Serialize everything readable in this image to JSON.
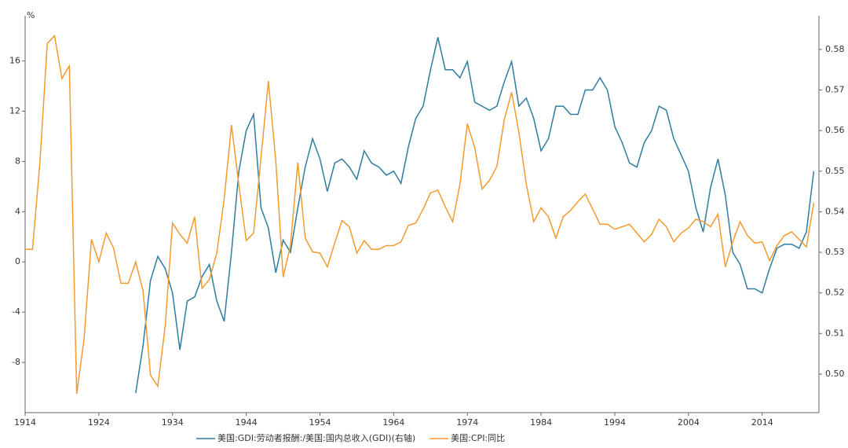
{
  "chart_data": {
    "type": "line",
    "y_unit": "%",
    "x": [
      1914,
      1915,
      1916,
      1917,
      1918,
      1919,
      1920,
      1921,
      1922,
      1923,
      1924,
      1925,
      1926,
      1927,
      1928,
      1929,
      1930,
      1931,
      1932,
      1933,
      1934,
      1935,
      1936,
      1937,
      1938,
      1939,
      1940,
      1941,
      1942,
      1943,
      1944,
      1945,
      1946,
      1947,
      1948,
      1949,
      1950,
      1951,
      1952,
      1953,
      1954,
      1955,
      1956,
      1957,
      1958,
      1959,
      1960,
      1961,
      1962,
      1963,
      1964,
      1965,
      1966,
      1967,
      1968,
      1969,
      1970,
      1971,
      1972,
      1973,
      1974,
      1975,
      1976,
      1977,
      1978,
      1979,
      1980,
      1981,
      1982,
      1983,
      1984,
      1985,
      1986,
      1987,
      1988,
      1989,
      1990,
      1991,
      1992,
      1993,
      1994,
      1995,
      1996,
      1997,
      1998,
      1999,
      2000,
      2001,
      2002,
      2003,
      2004,
      2005,
      2006,
      2007,
      2008,
      2009,
      2010,
      2011,
      2012,
      2013,
      2014,
      2015,
      2016,
      2017,
      2018,
      2019,
      2020,
      2021
    ],
    "xlim": [
      1914,
      2021.7
    ],
    "xticks": [
      1914,
      1924,
      1934,
      1944,
      1954,
      1964,
      1974,
      1984,
      1994,
      2004,
      2014
    ],
    "ylim": [
      -12,
      19.6
    ],
    "yticks": [
      -8,
      -4,
      0,
      4,
      8,
      12,
      16
    ],
    "y2lim": [
      0.4905,
      0.5883
    ],
    "y2ticks": [
      {
        "value": 0.5,
        "label": "0.50"
      },
      0.51,
      0.52,
      0.53,
      0.54,
      0.55,
      0.56,
      0.57,
      0.58
    ],
    "series": [
      {
        "name": "美国:GDI:劳动者报酬:/美国:国内总收入(GDI)(右轴)",
        "color": "#2e7ca0",
        "axis": "y2",
        "values": [
          null,
          null,
          null,
          null,
          null,
          null,
          null,
          null,
          null,
          null,
          null,
          null,
          null,
          null,
          null,
          0.4953,
          0.507,
          0.523,
          0.529,
          0.526,
          0.52,
          0.506,
          0.518,
          0.519,
          0.524,
          0.527,
          0.518,
          0.513,
          0.53,
          0.55,
          0.56,
          0.564,
          0.541,
          0.536,
          0.525,
          0.533,
          0.53,
          0.541,
          0.551,
          0.558,
          0.553,
          0.545,
          0.552,
          0.553,
          0.551,
          0.548,
          0.555,
          0.552,
          0.551,
          0.549,
          0.55,
          0.547,
          0.556,
          0.563,
          0.566,
          0.575,
          0.583,
          0.575,
          0.575,
          0.573,
          0.577,
          0.567,
          0.566,
          0.565,
          0.566,
          0.572,
          0.577,
          0.566,
          0.568,
          0.563,
          0.555,
          0.558,
          0.566,
          0.566,
          0.564,
          0.564,
          0.57,
          0.57,
          0.573,
          0.57,
          0.561,
          0.557,
          0.552,
          0.551,
          0.557,
          0.56,
          0.566,
          0.565,
          0.558,
          0.554,
          0.55,
          0.541,
          0.535,
          0.546,
          0.553,
          0.544,
          0.53,
          0.527,
          0.521,
          0.521,
          0.52,
          0.526,
          0.531,
          0.532,
          0.532,
          0.531,
          0.535,
          0.55
        ]
      },
      {
        "name": "美国:CPI:同比",
        "color": "#f39a2e",
        "values": [
          1.0,
          1.0,
          7.9,
          17.4,
          18.0,
          14.6,
          15.6,
          -10.5,
          -6.1,
          1.8,
          0.0,
          2.3,
          1.1,
          -1.7,
          -1.7,
          0.0,
          -2.3,
          -9.0,
          -9.9,
          -5.1,
          3.1,
          2.2,
          1.5,
          3.6,
          -2.1,
          -1.4,
          0.7,
          5.0,
          10.9,
          6.1,
          1.7,
          2.3,
          8.3,
          14.4,
          8.1,
          -1.2,
          1.3,
          7.9,
          1.9,
          0.8,
          0.7,
          -0.4,
          1.5,
          3.3,
          2.8,
          0.7,
          1.7,
          1.0,
          1.0,
          1.3,
          1.3,
          1.6,
          2.9,
          3.1,
          4.2,
          5.5,
          5.7,
          4.4,
          3.2,
          6.2,
          11.0,
          9.1,
          5.8,
          6.5,
          7.6,
          11.3,
          13.5,
          10.3,
          6.2,
          3.2,
          4.3,
          3.6,
          1.9,
          3.6,
          4.1,
          4.8,
          5.4,
          4.2,
          3.0,
          3.0,
          2.6,
          2.8,
          3.0,
          2.3,
          1.6,
          2.2,
          3.4,
          2.8,
          1.6,
          2.3,
          2.7,
          3.4,
          3.2,
          2.8,
          3.8,
          -0.4,
          1.6,
          3.2,
          2.1,
          1.5,
          1.6,
          0.1,
          1.3,
          2.1,
          2.4,
          1.8,
          1.2,
          4.7
        ]
      }
    ]
  }
}
